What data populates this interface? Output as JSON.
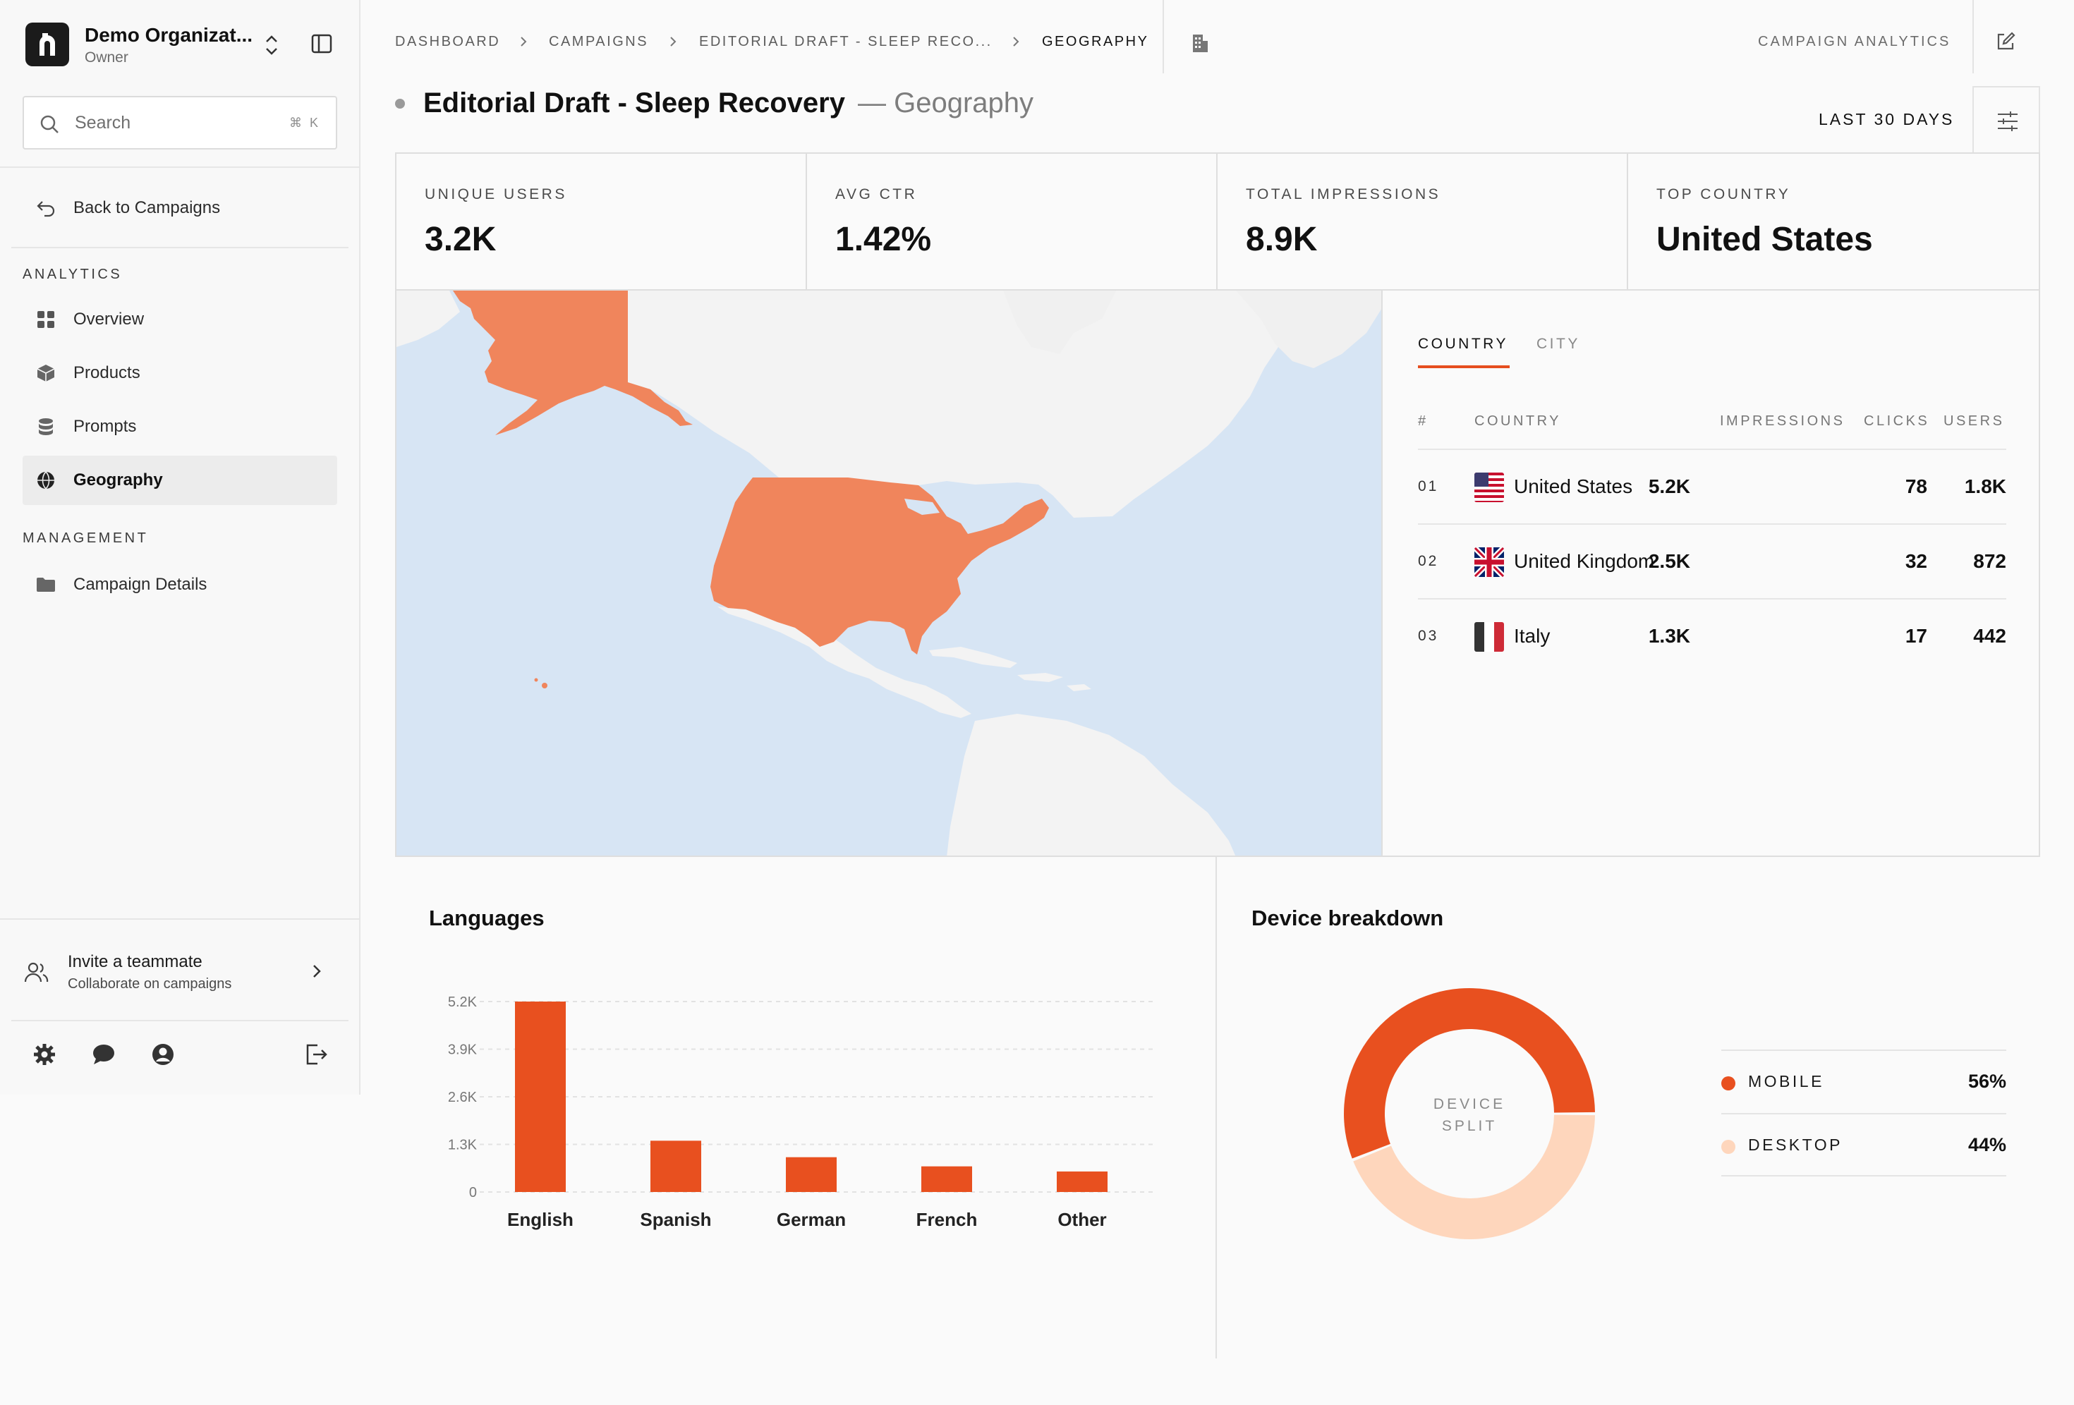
{
  "org": {
    "name": "Demo Organizat...",
    "role": "Owner"
  },
  "search": {
    "placeholder": "Search",
    "shortcut": "⌘ K"
  },
  "sidebar": {
    "back_label": "Back to Campaigns",
    "analytics_label": "ANALYTICS",
    "analytics_items": [
      {
        "label": "Overview",
        "icon": "grid-icon"
      },
      {
        "label": "Products",
        "icon": "box-icon"
      },
      {
        "label": "Prompts",
        "icon": "database-icon"
      },
      {
        "label": "Geography",
        "icon": "globe-icon",
        "active": true
      }
    ],
    "management_label": "MANAGEMENT",
    "management_items": [
      {
        "label": "Campaign Details",
        "icon": "folder-icon"
      }
    ],
    "invite": {
      "title": "Invite a teammate",
      "subtitle": "Collaborate on campaigns"
    }
  },
  "breadcrumb": [
    "DASHBOARD",
    "CAMPAIGNS",
    "EDITORIAL DRAFT - SLEEP RECO...",
    "GEOGRAPHY"
  ],
  "header": {
    "analytics_link": "CAMPAIGN ANALYTICS",
    "date_range": "LAST 30 DAYS"
  },
  "page": {
    "title": "Editorial Draft - Sleep Recovery",
    "subtitle": "— Geography"
  },
  "stats": [
    {
      "label": "UNIQUE USERS",
      "value": "3.2K"
    },
    {
      "label": "AVG CTR",
      "value": "1.42%"
    },
    {
      "label": "TOTAL IMPRESSIONS",
      "value": "8.9K"
    },
    {
      "label": "TOP COUNTRY",
      "value": "United States"
    }
  ],
  "map": {
    "highlight_color": "#f0855c",
    "water_color": "#d7e5f4",
    "land_color": "#f3f3f3",
    "highlighted": [
      "United States"
    ]
  },
  "geo_table": {
    "tabs": [
      "COUNTRY",
      "CITY"
    ],
    "columns": [
      "#",
      "COUNTRY",
      "IMPRESSIONS",
      "CLICKS",
      "USERS"
    ],
    "rows": [
      {
        "rank": "01",
        "country": "United States",
        "impressions": "5.2K",
        "clicks": "78",
        "users": "1.8K",
        "flag": "us"
      },
      {
        "rank": "02",
        "country": "United Kingdom",
        "impressions": "2.5K",
        "clicks": "32",
        "users": "872",
        "flag": "uk"
      },
      {
        "rank": "03",
        "country": "Italy",
        "impressions": "1.3K",
        "clicks": "17",
        "users": "442",
        "flag": "it"
      }
    ]
  },
  "charts": {
    "languages_title": "Languages",
    "device_title": "Device breakdown",
    "donut_center": [
      "DEVICE",
      "SPLIT"
    ]
  },
  "colors": {
    "accent": "#e8501f",
    "accent_light": "#fed6bc",
    "map_orange": "#f0855c"
  },
  "chart_data": [
    {
      "type": "bar",
      "title": "Languages",
      "categories": [
        "English",
        "Spanish",
        "German",
        "French",
        "Other"
      ],
      "values": [
        5200,
        1400,
        950,
        700,
        560
      ],
      "y_ticks": [
        "0",
        "1.3K",
        "2.6K",
        "3.9K",
        "5.2K"
      ],
      "ylim": [
        0,
        5200
      ],
      "grid": true,
      "color": "#e8501f"
    },
    {
      "type": "pie",
      "title": "Device breakdown",
      "categories": [
        "MOBILE",
        "DESKTOP"
      ],
      "values": [
        56,
        44
      ],
      "labels": [
        "56%",
        "44%"
      ],
      "colors": [
        "#e8501f",
        "#fed6bc"
      ],
      "legend": "right"
    }
  ]
}
